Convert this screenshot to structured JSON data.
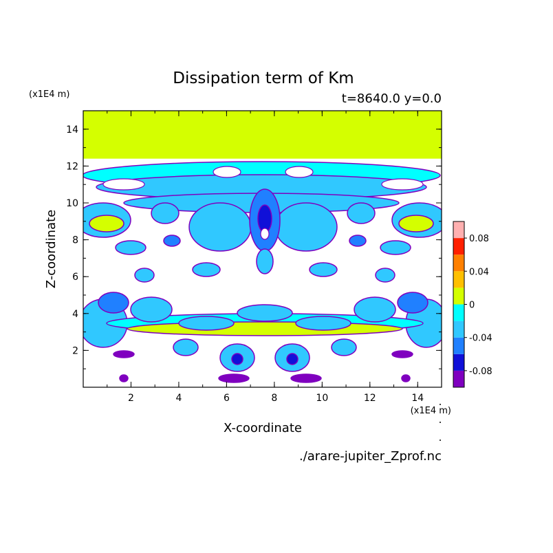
{
  "chart_data": {
    "type": "heatmap",
    "title": "Dissipation term of Km",
    "subtitle": "t=8640.0 y=0.0",
    "xlabel": "X-coordinate",
    "ylabel": "Z-coordinate",
    "x_unit": "(x1E4 m)",
    "y_unit": "(x1E4 m)",
    "source_file": "./arare-jupiter_Zprof.nc",
    "xlim": [
      0,
      15
    ],
    "ylim": [
      0,
      15
    ],
    "x_ticks": [
      2,
      4,
      6,
      8,
      10,
      12,
      14
    ],
    "x_tick_labels": [
      "2",
      "4",
      "6",
      "8",
      "10",
      "12",
      "14"
    ],
    "y_ticks": [
      2,
      4,
      6,
      8,
      10,
      12,
      14
    ],
    "y_tick_labels": [
      "2",
      "4",
      "6",
      "8",
      "10",
      "12",
      "14"
    ],
    "colorbar": {
      "levels": [
        -0.1,
        -0.08,
        -0.06,
        -0.04,
        -0.02,
        0,
        0.02,
        0.04,
        0.06,
        0.08,
        0.1
      ],
      "colors": [
        "#7f00bf",
        "#1010d8",
        "#2080ff",
        "#30c8ff",
        "#00ffff",
        "#d4ff00",
        "#ffc000",
        "#ff8000",
        "#ff2000",
        "#ffb0b0"
      ],
      "tick_values": [
        -0.08,
        -0.04,
        0,
        0.04,
        0.08
      ],
      "tick_labels": [
        "-0.08",
        "-0.04",
        "0",
        "0.04",
        "0.08"
      ]
    },
    "bands": [
      {
        "z_min": 12.4,
        "z_max": 15,
        "value": 0.01,
        "note": "uniform small positive layer near top"
      }
    ]
  }
}
